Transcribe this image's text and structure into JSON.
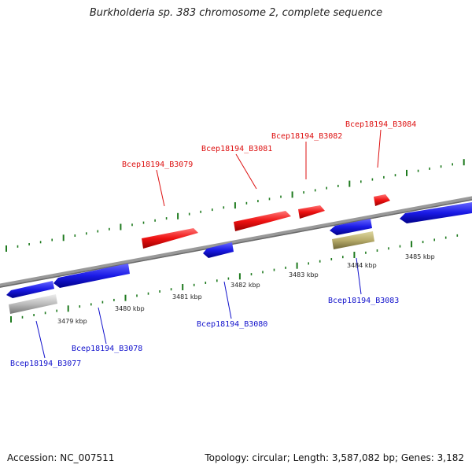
{
  "title": "Burkholderia sp. 383 chromosome 2, complete sequence",
  "footer": {
    "accession": "Accession: NC_007511",
    "stats": "Topology: circular; Length: 3,587,082 bp; Genes: 3,182"
  },
  "colors": {
    "forward_gene": "#ee1111",
    "reverse_gene": "#1a1ae6",
    "pseudo_gene": "#bbbbbb",
    "other_gene": "#b6ab6a",
    "backbone": "#888888",
    "tick": "#1e7a1e"
  },
  "scale": {
    "unit": "kbp",
    "labels": [
      "3479 kbp",
      "3480 kbp",
      "3481 kbp",
      "3482 kbp",
      "3483 kbp",
      "3484 kbp",
      "3485 kbp"
    ]
  },
  "genes": [
    {
      "id": "Bcep18194_B3077",
      "strand": "reverse",
      "kind": "gene"
    },
    {
      "id": "Bcep18194_B3078",
      "strand": "reverse",
      "kind": "gene"
    },
    {
      "id": "Bcep18194_B3079",
      "strand": "forward",
      "kind": "gene"
    },
    {
      "id": "Bcep18194_B3080",
      "strand": "reverse",
      "kind": "gene"
    },
    {
      "id": "Bcep18194_B3081",
      "strand": "forward",
      "kind": "gene"
    },
    {
      "id": "Bcep18194_B3082",
      "strand": "forward",
      "kind": "gene"
    },
    {
      "id": "Bcep18194_B3083",
      "strand": "reverse",
      "kind": "gene"
    },
    {
      "id": "Bcep18194_B3084",
      "strand": "forward",
      "kind": "gene"
    }
  ]
}
